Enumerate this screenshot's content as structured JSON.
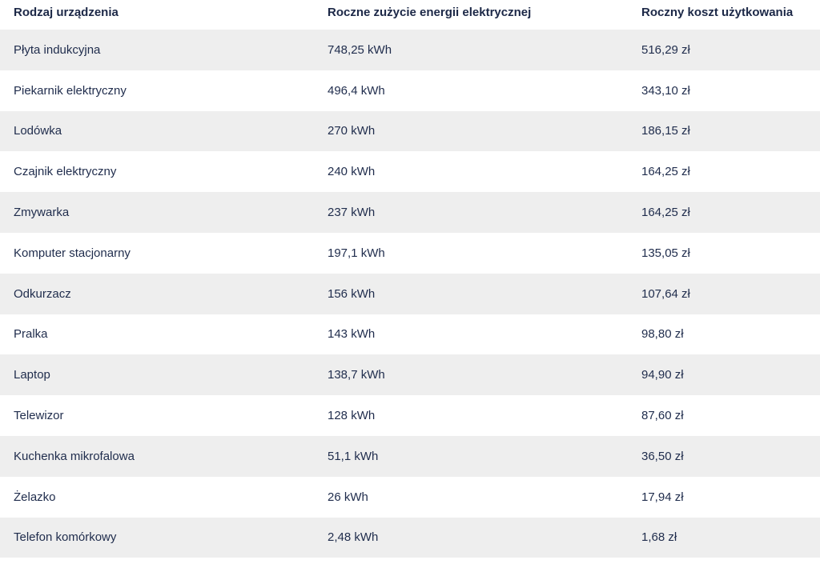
{
  "columns": [
    "Rodzaj urządzenia",
    "Roczne zużycie energii elektrycznej",
    "Roczny koszt użytkowania"
  ],
  "rows": [
    {
      "device": "Płyta indukcyjna",
      "energy": "748,25 kWh",
      "cost": "516,29 zł"
    },
    {
      "device": "Piekarnik elektryczny",
      "energy": "496,4 kWh",
      "cost": "343,10 zł"
    },
    {
      "device": "Lodówka",
      "energy": "270 kWh",
      "cost": "186,15 zł"
    },
    {
      "device": "Czajnik elektryczny",
      "energy": "240 kWh",
      "cost": "164,25 zł"
    },
    {
      "device": "Zmywarka",
      "energy": "237 kWh",
      "cost": "164,25 zł"
    },
    {
      "device": "Komputer stacjonarny",
      "energy": "197,1 kWh",
      "cost": "135,05 zł"
    },
    {
      "device": "Odkurzacz",
      "energy": "156 kWh",
      "cost": "107,64 zł"
    },
    {
      "device": "Pralka",
      "energy": "143 kWh",
      "cost": "98,80 zł"
    },
    {
      "device": "Laptop",
      "energy": "138,7 kWh",
      "cost": "94,90 zł"
    },
    {
      "device": "Telewizor",
      "energy": "128 kWh",
      "cost": "87,60 zł"
    },
    {
      "device": "Kuchenka mikrofalowa",
      "energy": "51,1 kWh",
      "cost": "36,50 zł"
    },
    {
      "device": "Żelazko",
      "energy": "26 kWh",
      "cost": "17,94 zł"
    },
    {
      "device": "Telefon komórkowy",
      "energy": "2,48 kWh",
      "cost": "1,68 zł"
    }
  ],
  "colors": {
    "text": "#1f2c4c",
    "shaded_row": "#eeeeee",
    "background": "#ffffff"
  }
}
